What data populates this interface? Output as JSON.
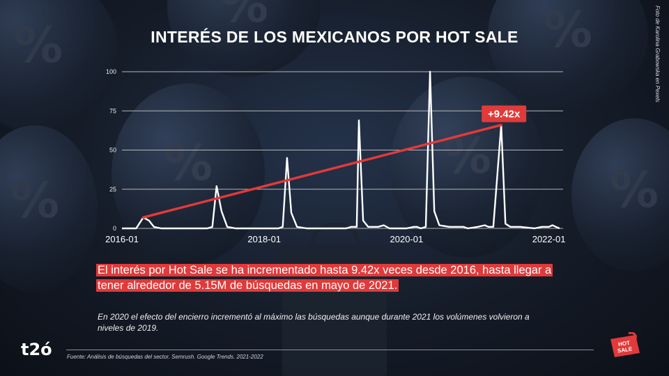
{
  "title": "INTERÉS DE LOS MEXICANOS POR HOT SALE",
  "photo_credit": "Foto de Karolina Grabowska en Pexels",
  "highlight_text": "El interés por Hot Sale se ha incrementado hasta 9.42x veces desde 2016, hasta llegar a tener alrededor de 5.15M de búsquedas en mayo de 2021.",
  "note_text": "En 2020 el efecto del encierro incrementó al máximo las búsquedas aunque durante 2021 los volúmenes volvieron a niveles de 2019.",
  "source_text": "Fuente: Análisis de búsquedas del sector. Semrush. Google Trends. 2021-2022",
  "logo_text": "t2ó",
  "badge_logo_text": "HOT SALE",
  "colors": {
    "accent": "#e03a3a",
    "line": "#ffffff",
    "grid": "#cfcfcf"
  },
  "chart_data": {
    "type": "line",
    "title": "",
    "xlabel": "",
    "ylabel": "",
    "ylim": [
      0,
      100
    ],
    "yticks": [
      0,
      25,
      50,
      75,
      100
    ],
    "xticks": [
      "2016-01",
      "2018-01",
      "2020-01",
      "2022-01"
    ],
    "x_range": [
      2016.0,
      2022.2
    ],
    "series": [
      {
        "points": [
          [
            2016.0,
            0
          ],
          [
            2016.2,
            0
          ],
          [
            2016.3,
            7
          ],
          [
            2016.38,
            5
          ],
          [
            2016.45,
            1
          ],
          [
            2016.55,
            0
          ],
          [
            2017.0,
            0
          ],
          [
            2017.2,
            0
          ],
          [
            2017.27,
            1
          ],
          [
            2017.33,
            27
          ],
          [
            2017.4,
            11
          ],
          [
            2017.48,
            1
          ],
          [
            2017.6,
            0
          ],
          [
            2018.0,
            0
          ],
          [
            2018.2,
            0
          ],
          [
            2018.26,
            1
          ],
          [
            2018.32,
            45
          ],
          [
            2018.38,
            10
          ],
          [
            2018.46,
            1
          ],
          [
            2018.6,
            0
          ],
          [
            2019.0,
            0
          ],
          [
            2019.15,
            0
          ],
          [
            2019.22,
            1
          ],
          [
            2019.3,
            1
          ],
          [
            2019.33,
            69
          ],
          [
            2019.39,
            5
          ],
          [
            2019.46,
            1
          ],
          [
            2019.6,
            1
          ],
          [
            2019.68,
            2
          ],
          [
            2019.76,
            0
          ],
          [
            2020.0,
            0
          ],
          [
            2020.1,
            1
          ],
          [
            2020.15,
            1
          ],
          [
            2020.2,
            0
          ],
          [
            2020.27,
            1
          ],
          [
            2020.33,
            100
          ],
          [
            2020.39,
            11
          ],
          [
            2020.46,
            2
          ],
          [
            2020.6,
            1
          ],
          [
            2020.8,
            1
          ],
          [
            2020.86,
            0
          ],
          [
            2021.0,
            1
          ],
          [
            2021.1,
            2
          ],
          [
            2021.15,
            1
          ],
          [
            2021.22,
            1
          ],
          [
            2021.33,
            66
          ],
          [
            2021.39,
            3
          ],
          [
            2021.46,
            1
          ],
          [
            2021.6,
            1
          ],
          [
            2021.8,
            0
          ],
          [
            2021.9,
            1
          ],
          [
            2022.0,
            1
          ],
          [
            2022.05,
            2
          ],
          [
            2022.1,
            1
          ],
          [
            2022.15,
            0
          ]
        ]
      }
    ],
    "trend": {
      "from": [
        2016.3,
        7
      ],
      "to": [
        2021.33,
        66
      ],
      "label": "+9.42x"
    }
  }
}
